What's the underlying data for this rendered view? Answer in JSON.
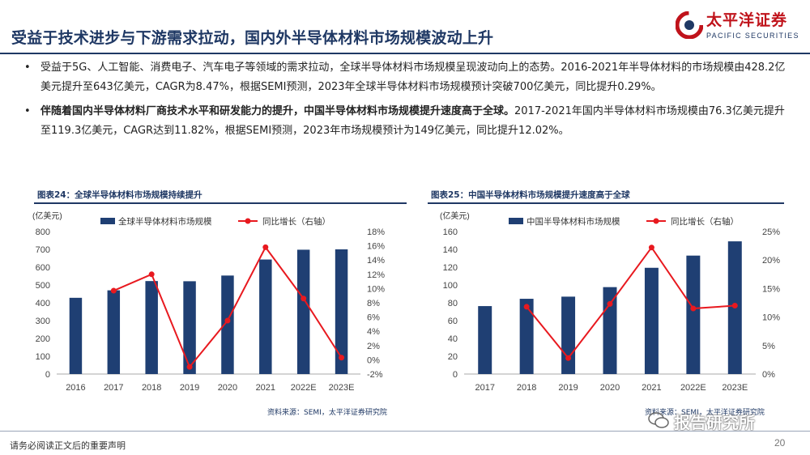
{
  "header": {
    "title": "受益于技术进步与下游需求拉动，国内外半导体材料市场规模波动上升",
    "logo_cn": "太平洋证券",
    "logo_en": "PACIFIC SECURITIES"
  },
  "bullets": [
    {
      "dot": "•",
      "bold": "",
      "text": "受益于5G、人工智能、消费电子、汽车电子等领域的需求拉动，全球半导体材料市场规模呈现波动向上的态势。2016-2021年半导体材料的市场规模由428.2亿美元提升至643亿美元，CAGR为8.47%，根据SEMI预测，2023年全球半导体材料市场规模预计突破700亿美元，同比提升0.29%。"
    },
    {
      "dot": "•",
      "bold": "伴随着国内半导体材料厂商技术水平和研发能力的提升，中国半导体材料市场规模提升速度高于全球。",
      "text": "2017-2021年国内半导体材料市场规模由76.3亿美元提升至119.3亿美元，CAGR达到11.82%，根据SEMI预测，2023年市场规模预计为149亿美元，同比提升12.02%。"
    }
  ],
  "panels": [
    {
      "title": "图表24：全球半导体材料市场规模持续提升",
      "source": "资料来源：SEMI，太平洋证券研究院"
    },
    {
      "title": "图表25：中国半导体材料市场规模提升速度高于全球",
      "source": "资料来源：SEMI，太平洋证券研究院"
    }
  ],
  "colors": {
    "bar": "#1f3f73",
    "line": "#e8191f",
    "title": "#1f3864",
    "brand_red": "#c0131b"
  },
  "chart_data": [
    {
      "type": "bar",
      "unit_label": "(亿美元)",
      "categories": [
        "2016",
        "2017",
        "2018",
        "2019",
        "2020",
        "2021",
        "2022E",
        "2023E"
      ],
      "series": [
        {
          "name": "全球半导体材料市场规模",
          "kind": "bar",
          "axis": "left",
          "values": [
            428,
            470,
            522,
            521,
            553,
            643,
            698,
            700
          ]
        },
        {
          "name": "同比增长（右轴）",
          "kind": "line",
          "axis": "right",
          "values": [
            null,
            9.7,
            12.0,
            -1.0,
            5.5,
            15.8,
            8.6,
            0.3
          ]
        }
      ],
      "ylim_left": [
        0,
        800
      ],
      "yticks_left": [
        "0",
        "100",
        "200",
        "300",
        "400",
        "500",
        "600",
        "700",
        "800"
      ],
      "ylim_right": [
        -2,
        18
      ],
      "yticks_right": [
        "-2%",
        "0%",
        "2%",
        "4%",
        "6%",
        "8%",
        "10%",
        "12%",
        "14%",
        "16%",
        "18%"
      ],
      "grid": false,
      "legend": "top"
    },
    {
      "type": "bar",
      "unit_label": "(亿美元)",
      "categories": [
        "2017",
        "2018",
        "2019",
        "2020",
        "2021",
        "2022E",
        "2023E"
      ],
      "series": [
        {
          "name": "中国半导体材料市场规模",
          "kind": "bar",
          "axis": "left",
          "values": [
            76.3,
            84.5,
            86.9,
            97.6,
            119.3,
            133,
            149
          ]
        },
        {
          "name": "同比增长（右轴）",
          "kind": "line",
          "axis": "right",
          "values": [
            null,
            11.8,
            2.8,
            12.3,
            22.2,
            11.5,
            12.0
          ]
        }
      ],
      "ylim_left": [
        0,
        160
      ],
      "yticks_left": [
        "0",
        "20",
        "40",
        "60",
        "80",
        "100",
        "120",
        "140",
        "160"
      ],
      "ylim_right": [
        0,
        25
      ],
      "yticks_right": [
        "0%",
        "5%",
        "10%",
        "15%",
        "20%",
        "25%"
      ],
      "grid": false,
      "legend": "top"
    }
  ],
  "watermark": "报告研究所",
  "footer": {
    "disclaimer": "请务必阅读正文后的重要声明",
    "page": "20"
  }
}
